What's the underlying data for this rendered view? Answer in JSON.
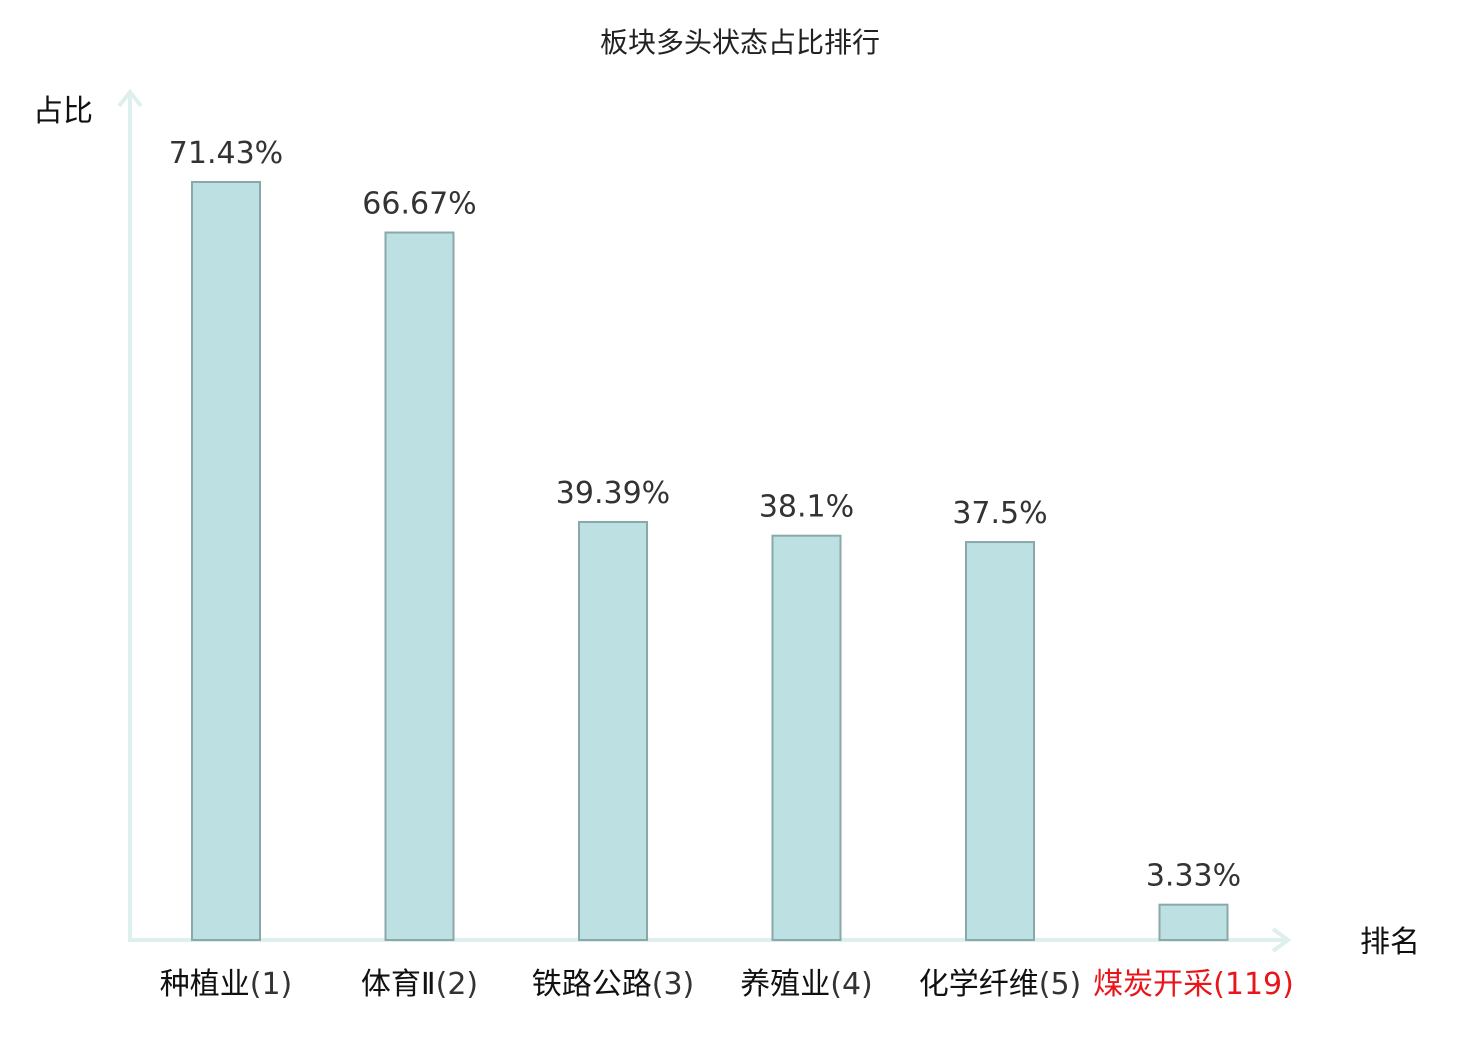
{
  "chart_data": {
    "type": "bar",
    "title": "板块多头状态占比排行",
    "ylabel": "占比",
    "xlabel": "排名",
    "ylim": [
      0,
      80
    ],
    "categories": [
      {
        "name": "种植业",
        "rank": "(1)",
        "highlight": false
      },
      {
        "name": "体育Ⅱ",
        "rank": "(2)",
        "highlight": false
      },
      {
        "name": "铁路公路",
        "rank": "(3)",
        "highlight": false
      },
      {
        "name": "养殖业",
        "rank": "(4)",
        "highlight": false
      },
      {
        "name": "化学纤维",
        "rank": "(5)",
        "highlight": false
      },
      {
        "name": "煤炭开采",
        "rank": "(119)",
        "highlight": true
      }
    ],
    "values": [
      71.43,
      66.67,
      39.39,
      38.1,
      37.5,
      3.33
    ],
    "value_labels": [
      "71.43%",
      "66.67%",
      "39.39%",
      "38.1%",
      "37.5%",
      "3.33%"
    ],
    "grid": false,
    "legend": "none",
    "colors": {
      "bar_fill": "#bde0e3",
      "bar_stroke": "#8aa8aa",
      "axis": "#ddf0ee",
      "label_text": "#111111",
      "rank_text": "#333333",
      "highlight_text": "#e8161b"
    }
  }
}
